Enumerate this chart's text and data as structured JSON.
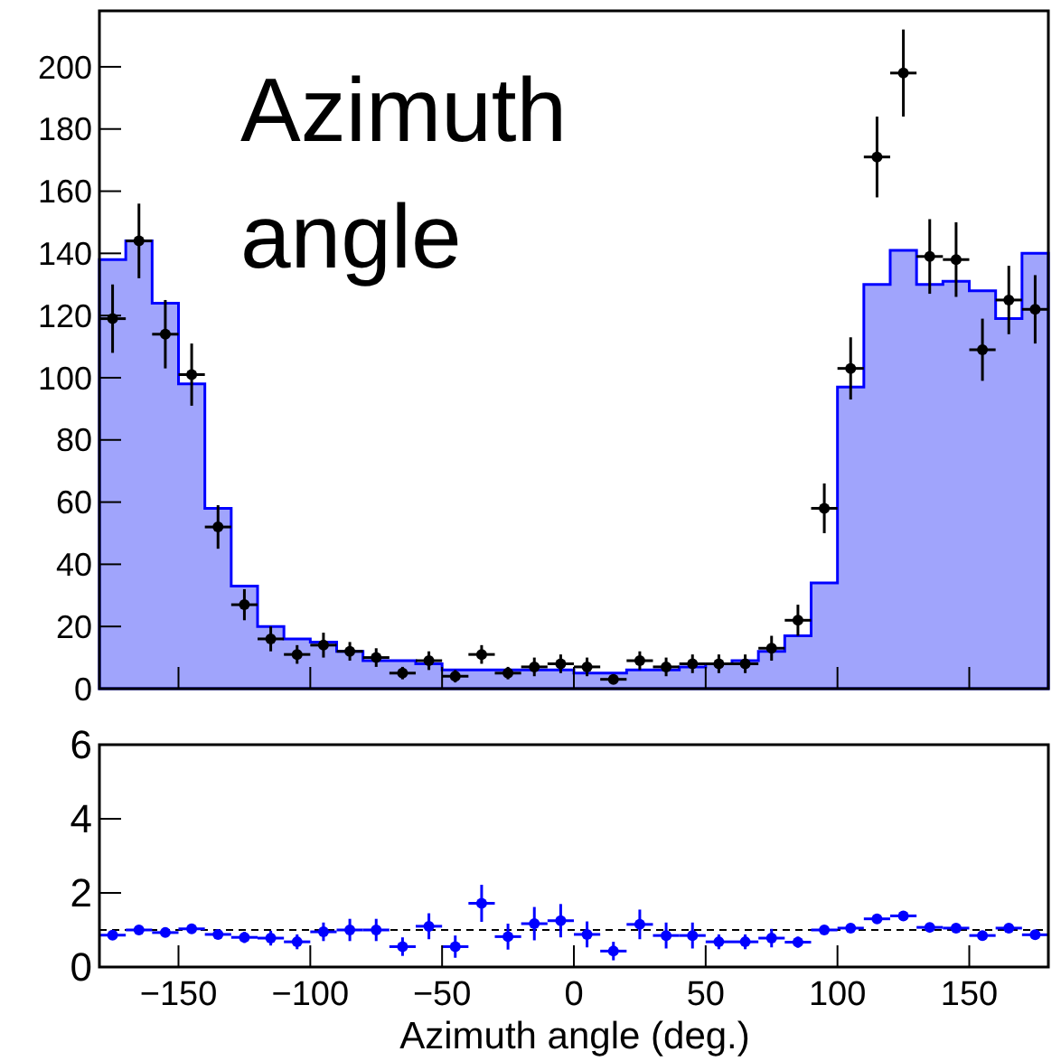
{
  "chart_data": [
    {
      "type": "histogram",
      "annotations": [
        "Azimuth angle"
      ],
      "bins": [
        -180,
        -170,
        -160,
        -150,
        -140,
        -130,
        -120,
        -110,
        -100,
        -90,
        -80,
        -70,
        -60,
        -50,
        -40,
        -30,
        -20,
        -10,
        0,
        10,
        20,
        30,
        40,
        50,
        60,
        70,
        80,
        90,
        100,
        110,
        120,
        130,
        140,
        150,
        160,
        170,
        180
      ],
      "series": [
        {
          "color": "#a0a4fc",
          "values": [
            138,
            144,
            124,
            98,
            58,
            33,
            20,
            16,
            15,
            12,
            9,
            9,
            8,
            6,
            6,
            6,
            6,
            6,
            5,
            5,
            6,
            6,
            7,
            8,
            9,
            12,
            17,
            34,
            97,
            130,
            141,
            130,
            131,
            128,
            119,
            140
          ]
        },
        {
          "type": "scatter",
          "color": "#000000",
          "x": [
            -175,
            -165,
            -155,
            -145,
            -135,
            -125,
            -115,
            -105,
            -95,
            -85,
            -75,
            -65,
            -55,
            -45,
            -35,
            -25,
            -15,
            -5,
            5,
            15,
            25,
            35,
            45,
            55,
            65,
            75,
            85,
            95,
            105,
            115,
            125,
            135,
            145,
            155,
            165,
            175
          ],
          "values": [
            119,
            144,
            114,
            101,
            52,
            27,
            16,
            11,
            14,
            12,
            10,
            5,
            9,
            4,
            11,
            5,
            7,
            8,
            7,
            3,
            9,
            7,
            8,
            8,
            8,
            13,
            22,
            58,
            103,
            171,
            198,
            139,
            138,
            109,
            125,
            122
          ],
          "errors": [
            11,
            12,
            11,
            10,
            7,
            5,
            4,
            3,
            4,
            3,
            3,
            2,
            3,
            2,
            3,
            2,
            3,
            3,
            3,
            null,
            3,
            3,
            3,
            3,
            3,
            4,
            5,
            8,
            10,
            13,
            14,
            12,
            12,
            10,
            11,
            11
          ],
          "xerrors": [
            5,
            5,
            5,
            5,
            5,
            5,
            5,
            5,
            5,
            5,
            5,
            5,
            5,
            5,
            5,
            5,
            5,
            5,
            5,
            5,
            5,
            5,
            5,
            5,
            5,
            5,
            5,
            5,
            5,
            5,
            5,
            5,
            5,
            5,
            5,
            5
          ]
        }
      ],
      "xlim": [
        -180,
        180
      ],
      "ylim": [
        0,
        218
      ],
      "yticks": [
        0,
        20,
        40,
        60,
        80,
        100,
        120,
        140,
        160,
        180,
        200
      ],
      "xticks": [
        -150,
        -100,
        -50,
        0,
        50,
        100,
        150
      ],
      "tick_labels": "y"
    },
    {
      "type": "scatter",
      "xlabel": "Azimuth angle (deg.)",
      "marker": "circle",
      "x": [
        -175,
        -165,
        -155,
        -145,
        -135,
        -125,
        -115,
        -105,
        -95,
        -85,
        -75,
        -65,
        -55,
        -45,
        -35,
        -25,
        -15,
        -5,
        5,
        15,
        25,
        35,
        45,
        55,
        65,
        75,
        85,
        95,
        105,
        115,
        125,
        135,
        145,
        155,
        165,
        175
      ],
      "series": [
        {
          "color": "#0000ff",
          "values": [
            0.86,
            1.0,
            0.93,
            1.03,
            0.88,
            0.8,
            0.78,
            0.68,
            0.95,
            1.0,
            1.0,
            0.55,
            1.1,
            0.55,
            1.72,
            0.82,
            1.17,
            1.25,
            0.88,
            0.43,
            1.15,
            0.85,
            0.85,
            0.68,
            0.68,
            0.78,
            0.67,
            1.0,
            1.05,
            1.3,
            1.38,
            1.07,
            1.05,
            0.85,
            1.05,
            0.87
          ],
          "errors": [
            0.08,
            0.08,
            0.08,
            0.08,
            0.1,
            0.15,
            0.2,
            0.2,
            0.25,
            0.3,
            0.3,
            0.25,
            0.35,
            0.3,
            0.5,
            0.35,
            0.45,
            0.45,
            0.35,
            0.25,
            0.4,
            0.35,
            0.35,
            0.2,
            0.2,
            0.25,
            0.15,
            0.1,
            0.06,
            0.05,
            0.05,
            0.05,
            0.05,
            0.05,
            0.05,
            0.05
          ],
          "xerrors": [
            5,
            5,
            5,
            5,
            5,
            5,
            5,
            5,
            5,
            5,
            5,
            5,
            5,
            5,
            5,
            5,
            5,
            5,
            5,
            5,
            5,
            5,
            5,
            5,
            5,
            5,
            5,
            5,
            5,
            5,
            5,
            5,
            5,
            5,
            5,
            5
          ]
        }
      ],
      "ref_lines": [
        {
          "axis": "y",
          "value": 1,
          "line_style": "dashed",
          "color": "#000000"
        }
      ],
      "xlim": [
        -180,
        180
      ],
      "ylim": [
        0,
        6
      ],
      "xticks": [
        -150,
        -100,
        -50,
        0,
        50,
        100,
        150
      ],
      "yticks": [
        0,
        2,
        4,
        6
      ]
    }
  ]
}
